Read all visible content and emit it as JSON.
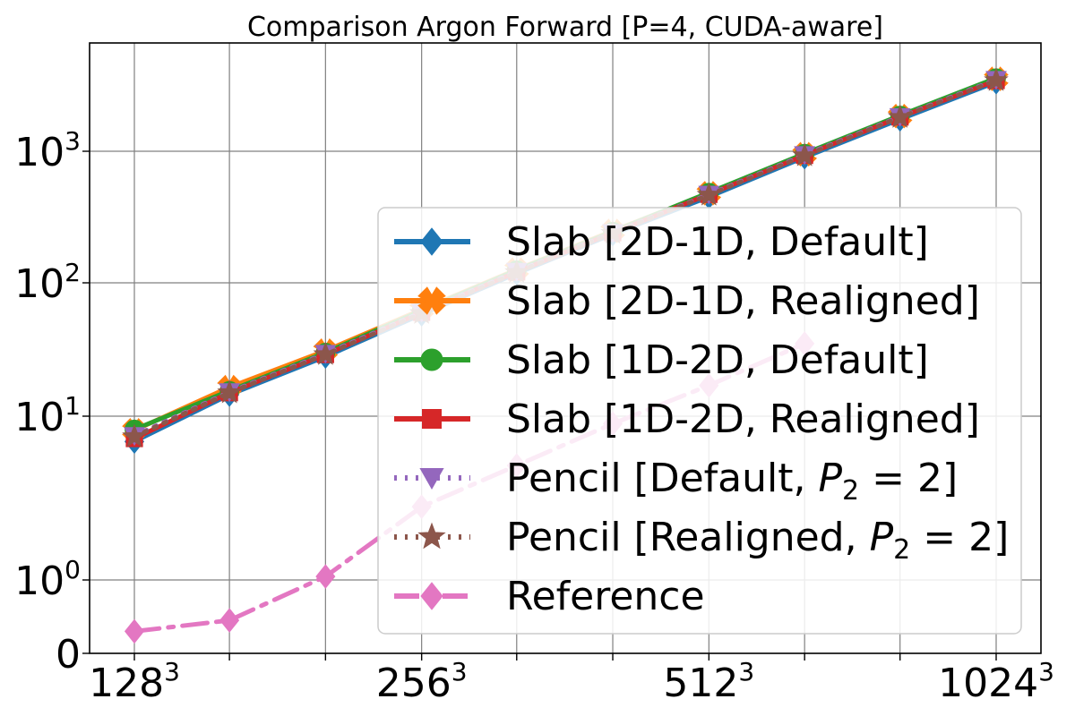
{
  "chart_data": {
    "type": "line",
    "title": "Comparison Argon Forward [P=4, CUDA-aware]",
    "xlabel": "",
    "ylabel": "",
    "y_scale": "symlog",
    "grid": true,
    "legend_position": "lower-right",
    "x": [
      128,
      161,
      203,
      256,
      322,
      406,
      512,
      645,
      812,
      1024
    ],
    "x_ticks": [
      {
        "base": "128",
        "exp": "3"
      },
      {
        "base": "256",
        "exp": "3"
      },
      {
        "base": "512",
        "exp": "3"
      },
      {
        "base": "1024",
        "exp": "3"
      }
    ],
    "y_ticks": [
      {
        "base": "0",
        "exp": ""
      },
      {
        "base": "10",
        "exp": "0"
      },
      {
        "base": "10",
        "exp": "1"
      },
      {
        "base": "10",
        "exp": "2"
      },
      {
        "base": "10",
        "exp": "3"
      }
    ],
    "series": [
      {
        "name": "Slab [2D-1D, Default]",
        "color": "#1f77b4",
        "line_style": "solid",
        "marker": "diamond",
        "values": [
          7.0,
          14.5,
          28,
          58,
          118,
          235,
          450,
          900,
          1750,
          3350
        ]
      },
      {
        "name": "Slab [2D-1D, Realigned]",
        "color": "#ff7f0e",
        "line_style": "solid",
        "marker": "x-filled",
        "values": [
          8.2,
          16.5,
          31,
          63,
          126,
          248,
          480,
          950,
          1850,
          3550
        ]
      },
      {
        "name": "Slab [1D-2D, Default]",
        "color": "#2ca02c",
        "line_style": "solid",
        "marker": "circle",
        "values": [
          8.3,
          15.5,
          30,
          62,
          125,
          245,
          485,
          960,
          1870,
          3600
        ]
      },
      {
        "name": "Slab [1D-2D, Realigned]",
        "color": "#d62728",
        "line_style": "solid",
        "marker": "square",
        "values": [
          7.3,
          15.0,
          29,
          60,
          121,
          240,
          470,
          930,
          1820,
          3450
        ]
      },
      {
        "name": "Pencil [Default, P_2 = 2]",
        "color": "#9467bd",
        "line_style": "dotted",
        "marker": "triangle-down",
        "values": [
          7.6,
          15.2,
          29.5,
          60,
          122,
          240,
          470,
          940,
          1830,
          3500
        ]
      },
      {
        "name": "Pencil [Realigned, P_2 = 2]",
        "color": "#8c564b",
        "line_style": "dotted",
        "marker": "star",
        "values": [
          7.5,
          15.0,
          29.0,
          59,
          120,
          238,
          465,
          925,
          1810,
          3450
        ]
      },
      {
        "name": "Reference",
        "color": "#e377c2",
        "line_style": "dashdot",
        "marker": "diamond",
        "values": [
          0.3,
          0.45,
          1.05,
          2.8,
          5.0,
          9.0,
          17,
          35,
          null,
          null
        ]
      }
    ],
    "legend_labels": [
      {
        "main": "Slab [2D-1D, Default]"
      },
      {
        "main": "Slab [2D-1D, Realigned]"
      },
      {
        "main": "Slab [1D-2D, Default]"
      },
      {
        "main": "Slab [1D-2D, Realigned]"
      },
      {
        "pre": "Pencil [Default, ",
        "var": "P",
        "sub": "2",
        "post": " = 2]"
      },
      {
        "pre": "Pencil [Realigned, ",
        "var": "P",
        "sub": "2",
        "post": " = 2]"
      },
      {
        "main": "Reference"
      }
    ]
  }
}
